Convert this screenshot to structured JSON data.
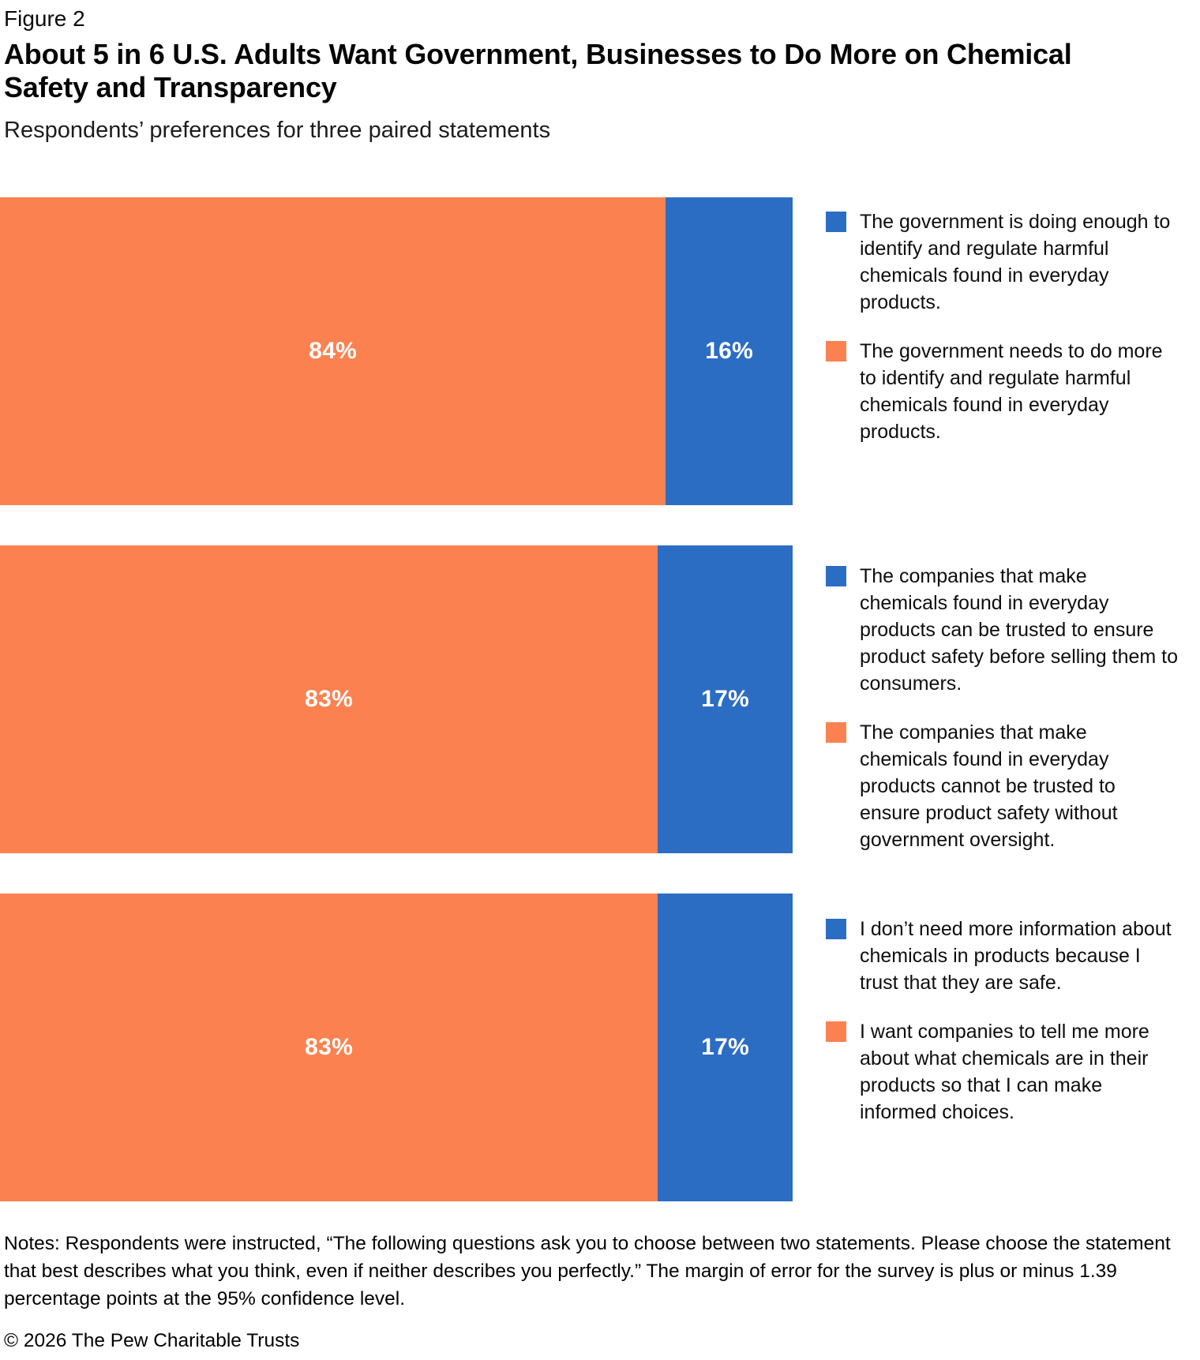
{
  "figure_label": "Figure 2",
  "title": "About 5 in 6 U.S. Adults Want Government, Businesses to Do More on Chemical Safety and Transparency",
  "subtitle": "Respondents’ preferences for three paired statements",
  "colors": {
    "orange": "#FB8250",
    "blue": "#2C6DC4"
  },
  "chart_data": {
    "type": "bar",
    "layout": "horizontal-stacked-100pct",
    "value_unit": "percent",
    "xlim": [
      0,
      100
    ],
    "grid": false,
    "legend_position": "right-of-each-bar",
    "rows": [
      {
        "orange": {
          "value": 84,
          "label": "84%"
        },
        "blue": {
          "value": 16,
          "label": "16%"
        },
        "legend_blue": "The government is doing enough to identify and regulate harmful chemicals found in everyday products.",
        "legend_orange": "The government needs to do more to identify and regulate harmful chemicals found in everyday products."
      },
      {
        "orange": {
          "value": 83,
          "label": "83%"
        },
        "blue": {
          "value": 17,
          "label": "17%"
        },
        "legend_blue": "The companies that make chemicals found in everyday products can be trusted to ensure product safety before selling them to consumers.",
        "legend_orange": "The companies that make chemicals found in everyday products cannot be trusted to ensure product safety without government oversight."
      },
      {
        "orange": {
          "value": 83,
          "label": "83%"
        },
        "blue": {
          "value": 17,
          "label": "17%"
        },
        "legend_blue": "I don’t need more information about chemicals in products because I trust that they are safe.",
        "legend_orange": "I want companies to tell me more about what chemicals are in their products so that I can make informed choices."
      }
    ]
  },
  "notes": "Notes: Respondents were instructed, “The following questions ask you to choose between two statements. Please choose the statement that best describes what you think, even if neither describes you perfectly.” The margin of error for the survey is plus or minus 1.39 percentage points at the 95% confidence level.",
  "copyright": "© 2026 The Pew Charitable Trusts"
}
